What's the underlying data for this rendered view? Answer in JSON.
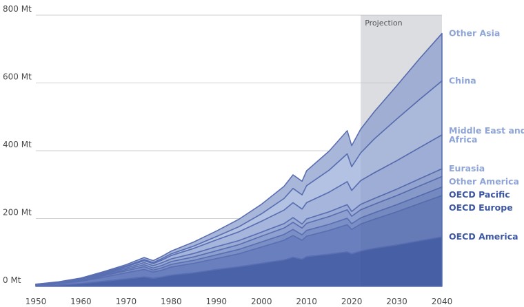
{
  "chart_data": {
    "type": "area",
    "stacked": true,
    "unit": "Mt",
    "x": [
      1950,
      1955,
      1960,
      1965,
      1970,
      1972,
      1974,
      1976,
      1978,
      1980,
      1985,
      1990,
      1995,
      2000,
      2005,
      2007,
      2009,
      2010,
      2015,
      2019,
      2020,
      2022,
      2025,
      2030,
      2035,
      2040
    ],
    "xticks": [
      1950,
      1960,
      1970,
      1980,
      1990,
      2000,
      2010,
      2020,
      2030,
      2040
    ],
    "yticks": [
      {
        "value": 0,
        "label": "0 Mt"
      },
      {
        "value": 200,
        "label": "200 Mt"
      },
      {
        "value": 400,
        "label": "400 Mt"
      },
      {
        "value": 600,
        "label": "600 Mt"
      },
      {
        "value": 800,
        "label": "800 Mt"
      }
    ],
    "xlim": [
      1950,
      2040
    ],
    "ylim": [
      0,
      800
    ],
    "grid": true,
    "projection": {
      "label": "Projection",
      "start": 2022,
      "end": 2040
    },
    "series": [
      {
        "name": "OECD America",
        "color": "#4a62a8",
        "label_color": "#3d57a3",
        "values": [
          2,
          4,
          8,
          15,
          22,
          25,
          28,
          24,
          28,
          33,
          40,
          50,
          58,
          68,
          78,
          86,
          80,
          88,
          95,
          102,
          96,
          104,
          112,
          122,
          134,
          146
        ]
      },
      {
        "name": "OECD Europe",
        "color": "#6a80be",
        "label_color": "#3d57a3",
        "values": [
          2,
          4,
          7,
          12,
          18,
          20,
          22,
          18,
          20,
          24,
          28,
          32,
          38,
          48,
          58,
          64,
          56,
          60,
          70,
          80,
          72,
          80,
          86,
          98,
          110,
          122
        ]
      },
      {
        "name": "OECD Pacific",
        "color": "#7b8fc7",
        "label_color": "#3d57a3",
        "values": [
          0.5,
          1,
          2,
          4,
          6,
          7,
          8,
          6,
          7,
          8,
          9,
          11,
          13,
          15,
          17,
          18,
          16,
          17,
          18,
          19,
          17,
          18,
          19,
          21,
          23,
          25
        ]
      },
      {
        "name": "Other America",
        "color": "#8ea0d0",
        "label_color": "#8fa5d6",
        "values": [
          0.5,
          1,
          1.5,
          2.5,
          4,
          5,
          6,
          6,
          7,
          8,
          10,
          12,
          14,
          17,
          19,
          21,
          20,
          21,
          23,
          25,
          22,
          24,
          25,
          27,
          29,
          31
        ]
      },
      {
        "name": "Eurasia",
        "color": "#9aabd6",
        "label_color": "#8fa5d6",
        "values": [
          0.5,
          1,
          2,
          3,
          4,
          5,
          6,
          7,
          8,
          8,
          10,
          12,
          12,
          12,
          13,
          14,
          12,
          13,
          14,
          15,
          14,
          16,
          17,
          19,
          21,
          23
        ]
      },
      {
        "name": "Middle East and Africa",
        "color": "#a6b5dc",
        "label_color": "#8fa5d6",
        "values": [
          0.5,
          1,
          1.5,
          2.5,
          4,
          5,
          6,
          6,
          8,
          10,
          15,
          20,
          26,
          32,
          40,
          44,
          44,
          48,
          58,
          68,
          62,
          70,
          76,
          84,
          92,
          100
        ]
      },
      {
        "name": "China",
        "color": "#b3c1e2",
        "label_color": "#8fa5d6",
        "values": [
          0,
          0.5,
          1,
          1.5,
          2,
          2.5,
          3,
          3,
          4,
          5,
          7,
          10,
          15,
          22,
          34,
          42,
          42,
          50,
          65,
          82,
          70,
          82,
          100,
          123,
          142,
          159
        ]
      },
      {
        "name": "Other Asia",
        "color": "#a8b6da",
        "label_color": "#8fa5d6",
        "values": [
          0.5,
          1,
          1.5,
          3,
          4,
          5,
          6,
          6,
          7,
          8,
          12,
          16,
          22,
          28,
          36,
          40,
          40,
          44,
          56,
          68,
          62,
          70,
          80,
          98,
          120,
          140
        ]
      }
    ],
    "label_lines": {
      "Middle East and Africa": [
        "Middle East and",
        "Africa"
      ]
    }
  }
}
